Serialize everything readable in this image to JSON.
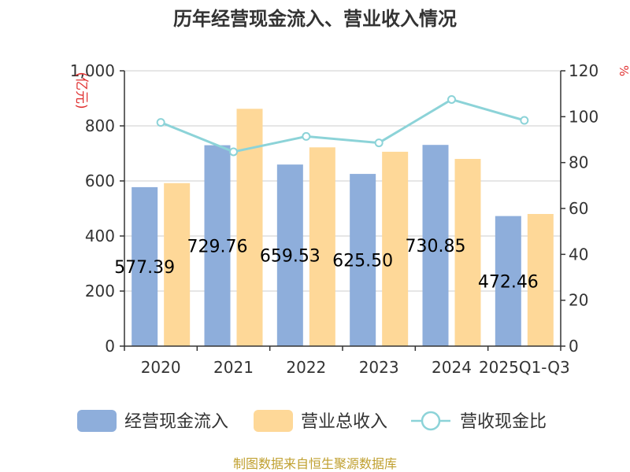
{
  "chart_data": {
    "type": "bar",
    "title": "历年经营现金流入、营业收入情况",
    "categories": [
      "2020",
      "2021",
      "2022",
      "2023",
      "2024",
      "2025Q1-Q3"
    ],
    "series": [
      {
        "name": "经营现金流入",
        "type": "bar",
        "axis": "left",
        "color": "#8eaedb",
        "values": [
          577.39,
          729.76,
          659.53,
          625.5,
          730.85,
          472.46
        ]
      },
      {
        "name": "营业总收入",
        "type": "bar",
        "axis": "left",
        "color": "#fed898",
        "values": [
          592,
          862,
          722,
          706,
          680,
          480
        ]
      },
      {
        "name": "营收现金比",
        "type": "line",
        "axis": "right",
        "color": "#8cd3d8",
        "values": [
          97.5,
          84.7,
          91.4,
          88.6,
          107.5,
          98.4
        ]
      }
    ],
    "bar_data_labels": [
      "577.39",
      "729.76",
      "659.53",
      "625.50",
      "730.85",
      "472.46"
    ],
    "y_left": {
      "unit": "(亿元)",
      "ylim": [
        0,
        1000
      ],
      "ticks": [
        "0",
        "200",
        "400",
        "600",
        "800",
        "1,000"
      ]
    },
    "y_right": {
      "unit": "%",
      "ylim": [
        0,
        120
      ],
      "ticks": [
        "0",
        "20",
        "40",
        "60",
        "80",
        "100",
        "120"
      ]
    },
    "grid": true,
    "legend_position": "bottom"
  },
  "footer": {
    "source": "制图数据来自恒生聚源数据库"
  }
}
